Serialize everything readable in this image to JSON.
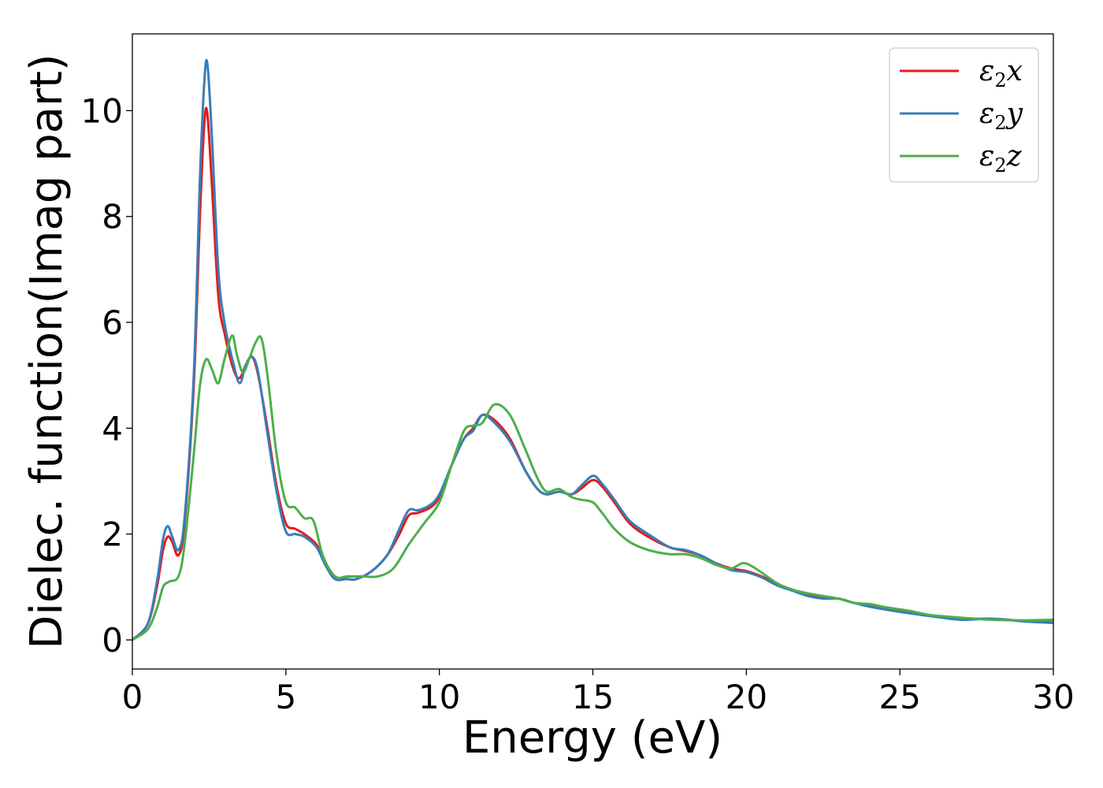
{
  "chart_data": {
    "type": "line",
    "title": "",
    "xlabel": "Energy (eV)",
    "ylabel": "Dielec. function(Imag part)",
    "xlim": [
      0,
      30
    ],
    "ylim": [
      -0.55,
      11.45
    ],
    "xticks": [
      0,
      5,
      10,
      15,
      20,
      25,
      30
    ],
    "yticks": [
      0,
      2,
      4,
      6,
      8,
      10
    ],
    "grid": false,
    "legend_position": "top-right",
    "series": [
      {
        "name": "ε2x",
        "legend": {
          "sym": "ε",
          "sub": "2",
          "var": "x"
        },
        "color": "#e41a1c",
        "x": [
          0,
          0.5,
          0.8,
          1.0,
          1.15,
          1.3,
          1.5,
          1.7,
          2.0,
          2.2,
          2.35,
          2.45,
          2.6,
          2.8,
          3.0,
          3.3,
          3.5,
          3.7,
          3.9,
          4.1,
          4.4,
          4.7,
          5.0,
          5.3,
          5.6,
          6.0,
          6.3,
          6.6,
          7.0,
          7.3,
          7.8,
          8.3,
          8.7,
          9.0,
          9.3,
          9.7,
          10.0,
          10.4,
          10.8,
          11.1,
          11.4,
          11.8,
          12.3,
          12.8,
          13.2,
          13.5,
          13.9,
          14.3,
          14.6,
          15.0,
          15.3,
          15.7,
          16.2,
          16.8,
          17.5,
          18.0,
          18.5,
          19.0,
          19.5,
          20.0,
          20.5,
          21.0,
          21.5,
          22.0,
          22.5,
          23.0,
          23.5,
          24.0,
          25.0,
          26.0,
          27.0,
          28.0,
          29.0,
          30.0
        ],
        "y": [
          0.0,
          0.3,
          1.0,
          1.7,
          1.95,
          1.85,
          1.6,
          2.2,
          4.8,
          8.0,
          9.8,
          9.9,
          8.5,
          6.5,
          5.8,
          5.1,
          4.95,
          5.2,
          5.35,
          5.0,
          4.0,
          2.9,
          2.2,
          2.1,
          2.0,
          1.8,
          1.45,
          1.2,
          1.15,
          1.15,
          1.3,
          1.6,
          2.0,
          2.35,
          2.4,
          2.5,
          2.7,
          3.3,
          3.8,
          4.0,
          4.25,
          4.15,
          3.8,
          3.2,
          2.85,
          2.75,
          2.8,
          2.75,
          2.85,
          3.02,
          2.9,
          2.6,
          2.2,
          1.95,
          1.75,
          1.68,
          1.6,
          1.45,
          1.35,
          1.3,
          1.2,
          1.05,
          0.95,
          0.85,
          0.8,
          0.78,
          0.7,
          0.65,
          0.55,
          0.45,
          0.4,
          0.4,
          0.36,
          0.33
        ]
      },
      {
        "name": "ε2y",
        "legend": {
          "sym": "ε",
          "sub": "2",
          "var": "y"
        },
        "color": "#377eb8",
        "x": [
          0,
          0.5,
          0.8,
          1.0,
          1.15,
          1.3,
          1.5,
          1.7,
          2.0,
          2.2,
          2.35,
          2.45,
          2.6,
          2.8,
          3.0,
          3.3,
          3.5,
          3.7,
          3.9,
          4.1,
          4.4,
          4.7,
          5.0,
          5.3,
          5.6,
          6.0,
          6.3,
          6.6,
          7.0,
          7.3,
          7.8,
          8.3,
          8.7,
          9.0,
          9.3,
          9.7,
          10.0,
          10.4,
          10.8,
          11.1,
          11.4,
          11.8,
          12.3,
          12.8,
          13.2,
          13.5,
          13.9,
          14.3,
          14.6,
          15.0,
          15.3,
          15.7,
          16.2,
          16.8,
          17.5,
          18.0,
          18.5,
          19.0,
          19.5,
          20.0,
          20.5,
          21.0,
          21.5,
          22.0,
          22.5,
          23.0,
          23.5,
          24.0,
          25.0,
          26.0,
          27.0,
          28.0,
          29.0,
          30.0
        ],
        "y": [
          0.0,
          0.3,
          1.1,
          1.9,
          2.15,
          1.95,
          1.7,
          2.3,
          5.0,
          8.7,
          10.6,
          10.85,
          9.4,
          7.0,
          6.0,
          5.2,
          4.85,
          5.2,
          5.35,
          5.05,
          3.9,
          2.8,
          2.05,
          2.0,
          1.95,
          1.75,
          1.4,
          1.15,
          1.15,
          1.15,
          1.3,
          1.6,
          2.1,
          2.45,
          2.45,
          2.55,
          2.75,
          3.3,
          3.8,
          3.95,
          4.25,
          4.1,
          3.75,
          3.2,
          2.85,
          2.75,
          2.8,
          2.75,
          2.9,
          3.1,
          2.95,
          2.65,
          2.25,
          2.0,
          1.75,
          1.7,
          1.6,
          1.45,
          1.32,
          1.28,
          1.18,
          1.03,
          0.93,
          0.83,
          0.78,
          0.78,
          0.7,
          0.63,
          0.53,
          0.45,
          0.38,
          0.4,
          0.35,
          0.32
        ]
      },
      {
        "name": "ε2z",
        "legend": {
          "sym": "ε",
          "sub": "2",
          "var": "z"
        },
        "color": "#4daf4a",
        "x": [
          0,
          0.5,
          0.8,
          1.0,
          1.2,
          1.5,
          1.7,
          2.0,
          2.2,
          2.4,
          2.6,
          2.8,
          3.0,
          3.25,
          3.4,
          3.6,
          3.8,
          4.0,
          4.2,
          4.4,
          4.7,
          5.0,
          5.3,
          5.6,
          5.9,
          6.2,
          6.6,
          7.0,
          7.5,
          8.0,
          8.5,
          9.0,
          9.5,
          10.0,
          10.4,
          10.8,
          11.1,
          11.4,
          11.8,
          12.3,
          12.8,
          13.2,
          13.5,
          13.9,
          14.3,
          14.6,
          15.0,
          15.3,
          15.7,
          16.2,
          16.8,
          17.5,
          18.0,
          18.5,
          19.0,
          19.5,
          19.9,
          20.3,
          21.0,
          21.5,
          22.0,
          22.5,
          23.0,
          23.5,
          24.0,
          24.5,
          25.3,
          26.0,
          27.0,
          28.0,
          29.0,
          30.0
        ],
        "y": [
          0.0,
          0.2,
          0.6,
          1.0,
          1.1,
          1.2,
          1.8,
          3.5,
          4.8,
          5.3,
          5.1,
          4.85,
          5.3,
          5.75,
          5.4,
          5.05,
          5.3,
          5.6,
          5.7,
          5.0,
          3.5,
          2.6,
          2.5,
          2.3,
          2.25,
          1.6,
          1.2,
          1.2,
          1.2,
          1.2,
          1.35,
          1.8,
          2.2,
          2.6,
          3.3,
          3.95,
          4.05,
          4.1,
          4.45,
          4.25,
          3.6,
          3.05,
          2.8,
          2.85,
          2.7,
          2.65,
          2.6,
          2.4,
          2.1,
          1.85,
          1.7,
          1.62,
          1.62,
          1.55,
          1.42,
          1.35,
          1.45,
          1.35,
          1.07,
          0.95,
          0.88,
          0.83,
          0.78,
          0.7,
          0.68,
          0.62,
          0.55,
          0.47,
          0.42,
          0.38,
          0.37,
          0.38
        ]
      }
    ]
  }
}
